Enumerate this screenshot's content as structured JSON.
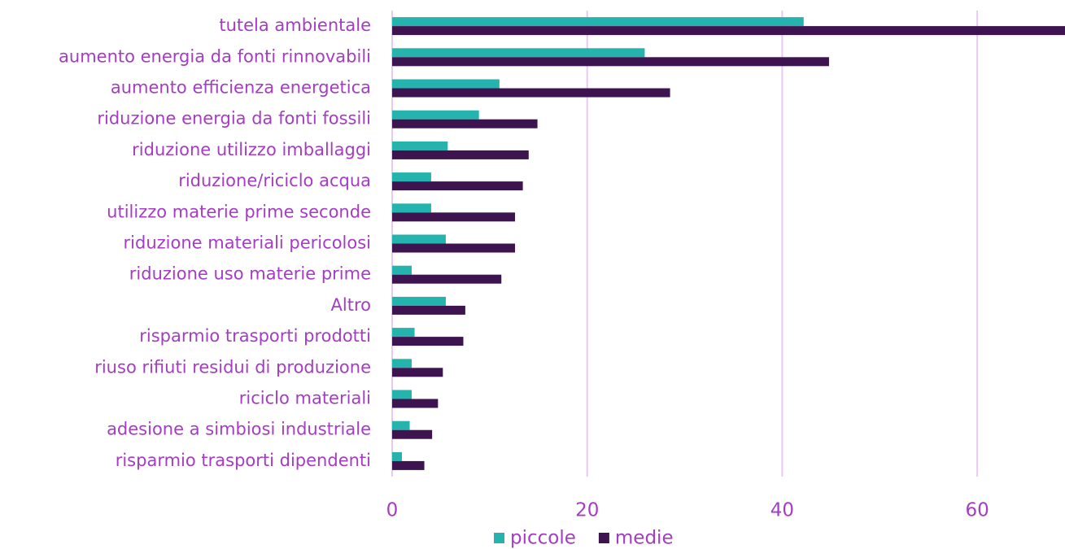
{
  "chart_data": {
    "type": "barh",
    "categories": [
      "tutela ambientale",
      "aumento energia da fonti rinnovabili",
      "aumento efficienza energetica",
      "riduzione energia da fonti fossili",
      "riduzione utilizzo imballaggi",
      "riduzione/riciclo acqua",
      "utilizzo materie prime seconde",
      "riduzione materiali pericolosi",
      "riduzione uso materie prime",
      "Altro",
      "risparmio trasporti prodotti",
      "riuso rifiuti residui di produzione",
      "riciclo materiali",
      "adesione a simbiosi industriale",
      "risparmio trasporti dipendenti"
    ],
    "series": [
      {
        "name": "piccole",
        "color": "#25b3ad",
        "values": [
          42.2,
          25.9,
          11.0,
          8.9,
          5.7,
          4.0,
          4.0,
          5.5,
          2.0,
          5.5,
          2.3,
          2.0,
          2.0,
          1.8,
          1.0
        ]
      },
      {
        "name": "medie",
        "color": "#3d1450",
        "values": [
          69,
          44.8,
          28.5,
          14.9,
          14.0,
          13.4,
          12.6,
          12.6,
          11.2,
          7.5,
          7.3,
          5.2,
          4.7,
          4.1,
          3.3
        ]
      }
    ],
    "xlim": [
      0,
      69
    ],
    "xticks": [
      0,
      20,
      40,
      60
    ],
    "grid": true,
    "legend": "bottom"
  }
}
